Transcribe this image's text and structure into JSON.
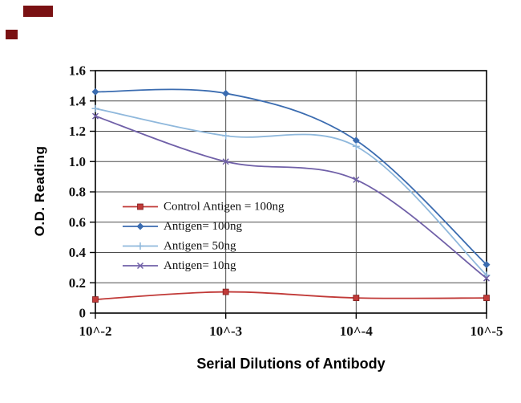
{
  "decor": {
    "logo_fragment_color": "#7a1113"
  },
  "chart_data": {
    "type": "line",
    "title": "",
    "xlabel": "Serial Dilutions of Antibody",
    "ylabel": "O.D. Reading",
    "categories": [
      "10^-2",
      "10^-3",
      "10^-4",
      "10^-5"
    ],
    "ylim": [
      0,
      1.6
    ],
    "ytick_step": 0.2,
    "ytick_labels": [
      "0",
      "0.2",
      "0.4",
      "0.6",
      "0.8",
      "1.0",
      "1.2",
      "1.4",
      "1.6"
    ],
    "grid": true,
    "legend_position": "inside-left",
    "series": [
      {
        "name": "Control Antigen = 100ng",
        "color": "#c13a38",
        "marker": "square",
        "values": [
          0.09,
          0.14,
          0.1,
          0.1
        ]
      },
      {
        "name": "Antigen= 100ng",
        "color": "#3b6cb0",
        "marker": "diamond",
        "values": [
          1.46,
          1.45,
          1.14,
          0.32
        ]
      },
      {
        "name": "Antigen= 50ng",
        "color": "#8fb8dc",
        "marker": "plus",
        "values": [
          1.35,
          1.17,
          1.1,
          0.25
        ]
      },
      {
        "name": "Antigen= 10ng",
        "color": "#7060a8",
        "marker": "x",
        "values": [
          1.3,
          1.0,
          0.88,
          0.23
        ]
      }
    ]
  }
}
